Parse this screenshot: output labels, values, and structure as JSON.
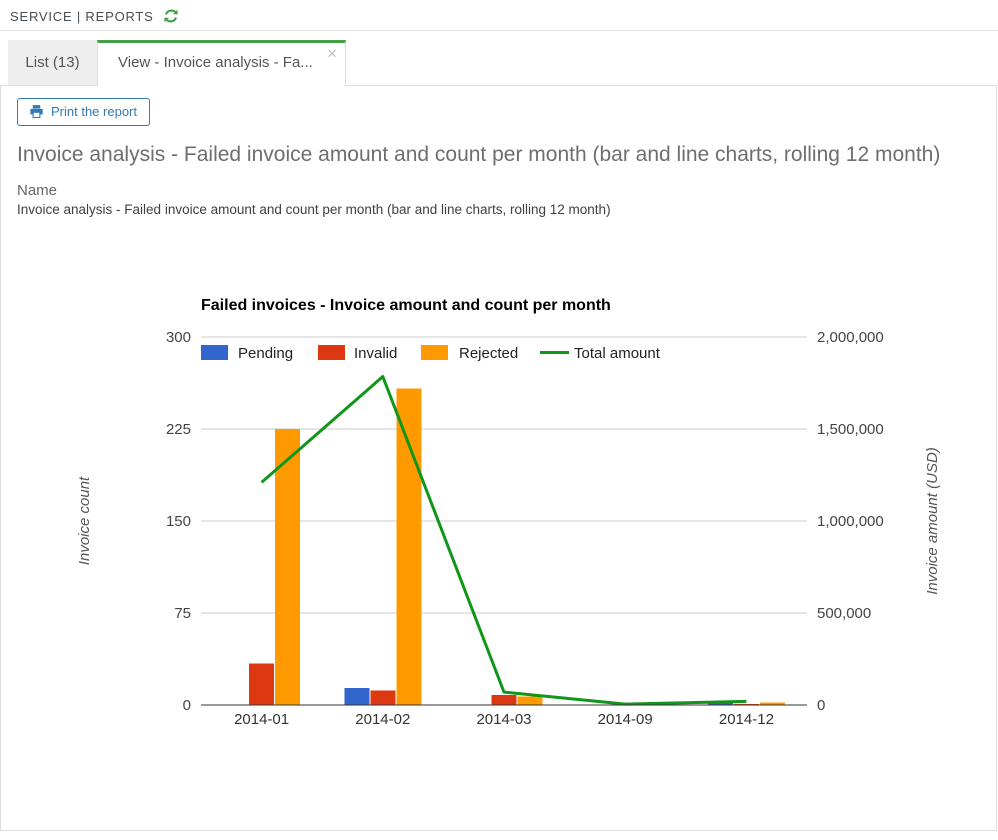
{
  "header": {
    "breadcrumb": "SERVICE | REPORTS"
  },
  "tabs": {
    "list": {
      "label": "List (13)"
    },
    "view": {
      "label": "View - Invoice analysis - Fa...",
      "close_glyph": "×"
    }
  },
  "report": {
    "print_button_label": "Print the report",
    "title": "Invoice analysis - Failed invoice amount and count per month (bar and line charts, rolling 12 month)",
    "name_label": "Name",
    "name_value": "Invoice analysis - Failed invoice amount and count per month (bar and line charts, rolling 12 month)"
  },
  "colors": {
    "accent_green": "#43a047",
    "button_blue": "#337ab7",
    "pending": "#3366cc",
    "invalid": "#dc3912",
    "rejected": "#ff9900",
    "line_green": "#109618",
    "gridline": "#cccccc",
    "baseline": "#333333",
    "tick_text": "#444444",
    "axis_title_text": "#555555"
  },
  "chart_data": {
    "type": "bar",
    "subtype": "grouped columns with secondary-axis line (dual y-axis combo)",
    "title": "Failed invoices - Invoice amount and count per month",
    "categories": [
      "2014-01",
      "2014-02",
      "2014-03",
      "2014-09",
      "2014-12"
    ],
    "series": [
      {
        "name": "Pending",
        "type": "bar",
        "axis": "left",
        "color": "#3366cc",
        "values": [
          0,
          14,
          0,
          0,
          2
        ]
      },
      {
        "name": "Invalid",
        "type": "bar",
        "axis": "left",
        "color": "#dc3912",
        "values": [
          34,
          12,
          8,
          0,
          1
        ]
      },
      {
        "name": "Rejected",
        "type": "bar",
        "axis": "left",
        "color": "#ff9900",
        "values": [
          225,
          258,
          7,
          0,
          2
        ]
      },
      {
        "name": "Total amount",
        "type": "line",
        "axis": "right",
        "color": "#109618",
        "values": [
          1210000,
          1785000,
          70000,
          5000,
          20000
        ]
      }
    ],
    "left_axis": {
      "title": "Invoice count",
      "min": 0,
      "max": 300,
      "ticks": [
        0,
        75,
        150,
        225,
        300
      ]
    },
    "right_axis": {
      "title": "Invoice amount (USD)",
      "min": 0,
      "max": 2000000,
      "tick_labels": [
        "0",
        "500,000",
        "1,000,000",
        "1,500,000",
        "2,000,000"
      ]
    },
    "xlabel": "",
    "ylabel": "Invoice count",
    "legend_position": "top-inside",
    "grid": true
  }
}
